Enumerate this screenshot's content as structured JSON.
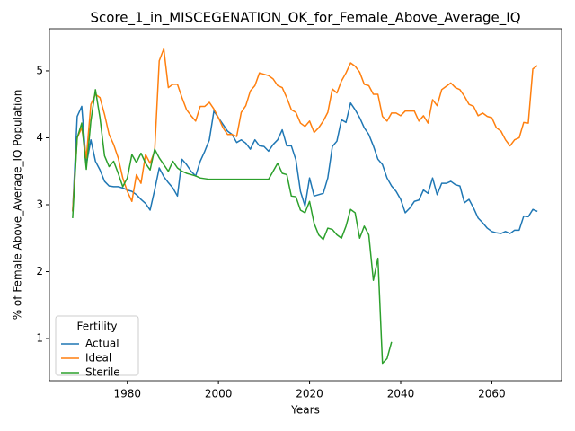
{
  "chart_data": {
    "type": "line",
    "title": "Score_1_in_MISCEGENATION_OK_for_Female_Above_Average_IQ",
    "xlabel": "Years",
    "ylabel": "% of Female Above_Average_IQ Population",
    "x": [
      1968,
      1969,
      1970,
      1971,
      1972,
      1973,
      1974,
      1975,
      1976,
      1977,
      1978,
      1979,
      1980,
      1981,
      1982,
      1983,
      1984,
      1985,
      1986,
      1987,
      1988,
      1989,
      1990,
      1991,
      1992,
      1993,
      1994,
      1995,
      1996,
      1997,
      1998,
      1999,
      2000,
      2001,
      2002,
      2003,
      2004,
      2005,
      2006,
      2007,
      2008,
      2009,
      2010,
      2011,
      2012,
      2013,
      2014,
      2015,
      2016,
      2017,
      2018,
      2019,
      2020,
      2021,
      2022,
      2023,
      2024,
      2025,
      2026,
      2027,
      2028,
      2029,
      2030,
      2031,
      2032,
      2033,
      2034,
      2035,
      2036,
      2037,
      2038,
      2039,
      2040,
      2041,
      2042,
      2043,
      2044,
      2045,
      2046,
      2047,
      2048,
      2049,
      2050,
      2051,
      2052,
      2053,
      2054,
      2055,
      2056,
      2057,
      2058,
      2059,
      2060,
      2061,
      2062,
      2063,
      2064,
      2065,
      2066,
      2067,
      2068,
      2069,
      2070
    ],
    "series": [
      {
        "name": "Actual",
        "color": "#1f77b4",
        "values": [
          2.9,
          4.32,
          4.47,
          3.6,
          3.97,
          3.65,
          3.52,
          3.35,
          3.28,
          3.27,
          3.27,
          3.25,
          3.22,
          3.2,
          3.15,
          3.08,
          3.02,
          2.92,
          3.22,
          3.55,
          3.42,
          3.33,
          3.25,
          3.13,
          3.68,
          3.6,
          3.5,
          3.43,
          3.65,
          3.8,
          3.97,
          4.4,
          4.3,
          4.2,
          4.1,
          4.05,
          3.93,
          3.97,
          3.92,
          3.83,
          3.97,
          3.88,
          3.87,
          3.8,
          3.9,
          3.97,
          4.12,
          3.88,
          3.88,
          3.67,
          3.2,
          2.98,
          3.4,
          3.13,
          3.15,
          3.17,
          3.4,
          3.87,
          3.95,
          4.27,
          4.23,
          4.52,
          4.42,
          4.3,
          4.15,
          4.05,
          3.88,
          3.68,
          3.6,
          3.4,
          3.28,
          3.2,
          3.08,
          2.88,
          2.95,
          3.05,
          3.07,
          3.22,
          3.17,
          3.4,
          3.15,
          3.32,
          3.32,
          3.35,
          3.3,
          3.28,
          3.03,
          3.08,
          2.95,
          2.8,
          2.73,
          2.65,
          2.6,
          2.58,
          2.57,
          2.6,
          2.57,
          2.62,
          2.62,
          2.83,
          2.82,
          2.93,
          2.9
        ]
      },
      {
        "name": "Ideal",
        "color": "#ff7f0e",
        "values": [
          2.9,
          4.0,
          4.15,
          3.7,
          4.5,
          4.65,
          4.6,
          4.35,
          4.05,
          3.9,
          3.7,
          3.4,
          3.2,
          3.05,
          3.45,
          3.32,
          3.75,
          3.62,
          3.8,
          5.15,
          5.33,
          4.75,
          4.8,
          4.8,
          4.6,
          4.42,
          4.33,
          4.25,
          4.47,
          4.47,
          4.53,
          4.43,
          4.3,
          4.15,
          4.05,
          4.05,
          4.02,
          4.38,
          4.48,
          4.7,
          4.78,
          4.97,
          4.95,
          4.93,
          4.88,
          4.78,
          4.75,
          4.6,
          4.42,
          4.38,
          4.22,
          4.17,
          4.25,
          4.08,
          4.15,
          4.25,
          4.38,
          4.73,
          4.67,
          4.85,
          4.97,
          5.12,
          5.07,
          4.98,
          4.8,
          4.78,
          4.65,
          4.65,
          4.32,
          4.25,
          4.37,
          4.37,
          4.33,
          4.4,
          4.4,
          4.4,
          4.25,
          4.33,
          4.22,
          4.57,
          4.48,
          4.72,
          4.77,
          4.82,
          4.75,
          4.72,
          4.62,
          4.5,
          4.47,
          4.33,
          4.37,
          4.32,
          4.3,
          4.15,
          4.1,
          3.97,
          3.88,
          3.97,
          4.0,
          4.23,
          4.22,
          5.03,
          5.08
        ]
      },
      {
        "name": "Sterile",
        "color": "#2ca02c",
        "values": [
          2.8,
          4.0,
          4.22,
          3.53,
          4.25,
          4.72,
          4.3,
          3.73,
          3.57,
          3.65,
          3.47,
          3.27,
          3.4,
          3.75,
          3.63,
          3.77,
          3.62,
          3.52,
          3.83,
          3.7,
          3.6,
          3.5,
          3.65,
          3.55,
          3.5,
          3.47,
          3.45,
          3.43,
          3.4,
          3.39,
          3.38,
          3.38,
          3.38,
          3.38,
          3.38,
          3.38,
          3.38,
          3.38,
          3.38,
          3.38,
          3.38,
          3.38,
          3.38,
          3.38,
          3.5,
          3.62,
          3.47,
          3.45,
          3.13,
          3.12,
          2.92,
          2.88,
          3.05,
          2.72,
          2.55,
          2.48,
          2.65,
          2.63,
          2.55,
          2.5,
          2.68,
          2.93,
          2.88,
          2.5,
          2.68,
          2.55,
          1.87,
          2.2,
          0.63,
          0.7,
          0.95,
          null,
          null,
          null,
          null,
          null,
          null,
          null,
          null,
          null,
          null,
          null,
          null,
          null,
          null,
          null,
          null,
          null,
          null,
          null,
          null,
          null,
          null,
          null,
          null,
          null,
          null,
          null,
          null,
          null,
          null,
          null,
          null
        ]
      }
    ],
    "xlim": [
      1962.9,
      2075.3
    ],
    "xticks": [
      1980,
      2000,
      2020,
      2040,
      2060
    ],
    "ylim": [
      0.37,
      5.63
    ],
    "yticks": [
      1,
      2,
      3,
      4,
      5
    ],
    "legend_title": "Fertility",
    "legend": "lower left"
  }
}
